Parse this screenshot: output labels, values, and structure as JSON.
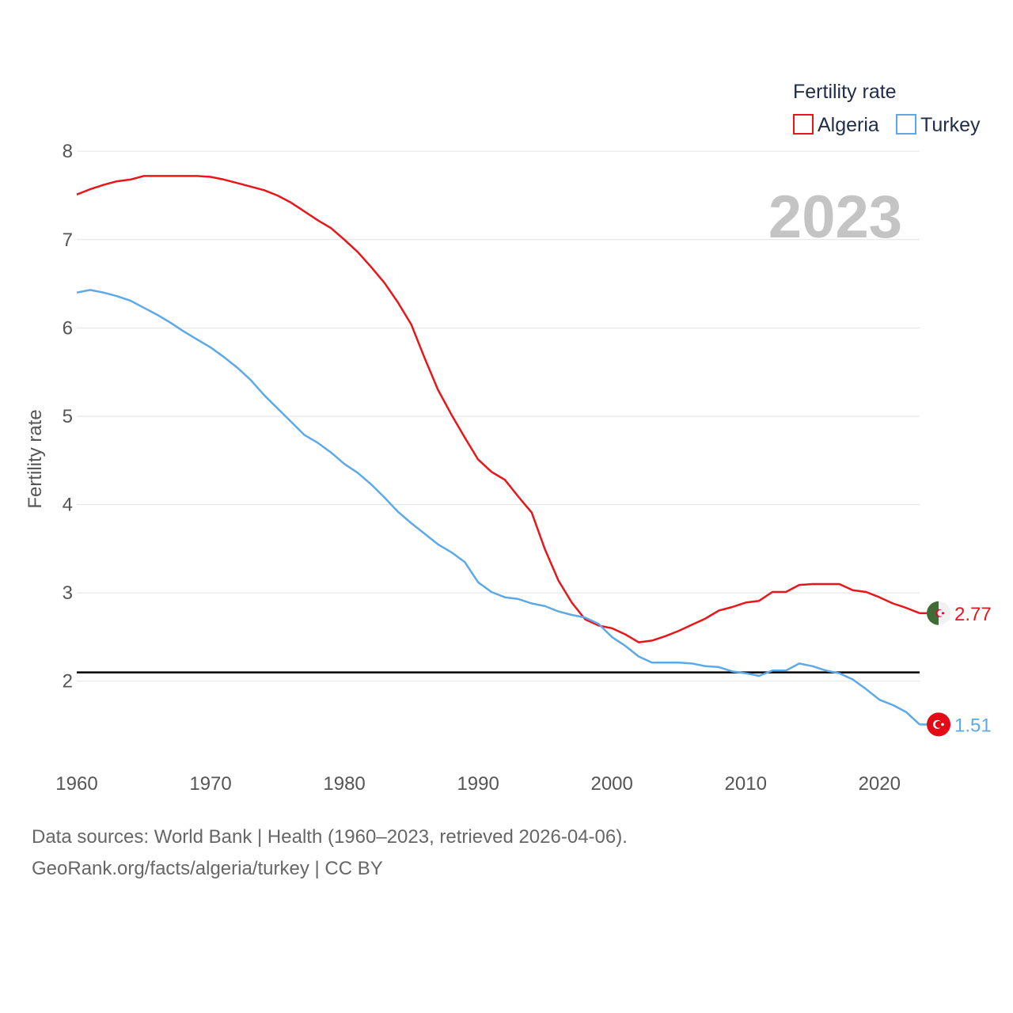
{
  "chart_data": {
    "type": "line",
    "title": "Fertility rate",
    "ylabel": "Fertility rate",
    "xlabel": "",
    "year_label": "2023",
    "xlim": [
      1960,
      2023
    ],
    "ylim": [
      1.2,
      8.1
    ],
    "x_ticks": [
      "1960",
      "1970",
      "1980",
      "1990",
      "2000",
      "2010",
      "2020"
    ],
    "y_ticks": [
      "2",
      "3",
      "4",
      "5",
      "6",
      "7",
      "8"
    ],
    "reference_line": 2.1,
    "x": [
      1960,
      1961,
      1962,
      1963,
      1964,
      1965,
      1966,
      1967,
      1968,
      1969,
      1970,
      1971,
      1972,
      1973,
      1974,
      1975,
      1976,
      1977,
      1978,
      1979,
      1980,
      1981,
      1982,
      1983,
      1984,
      1985,
      1986,
      1987,
      1988,
      1989,
      1990,
      1991,
      1992,
      1993,
      1994,
      1995,
      1996,
      1997,
      1998,
      1999,
      2000,
      2001,
      2002,
      2003,
      2004,
      2005,
      2006,
      2007,
      2008,
      2009,
      2010,
      2011,
      2012,
      2013,
      2014,
      2015,
      2016,
      2017,
      2018,
      2019,
      2020,
      2021,
      2022,
      2023
    ],
    "series": [
      {
        "name": "Algeria",
        "color": "#e8161b",
        "end_label": "2.77",
        "flag": "algeria-flag",
        "values": [
          7.51,
          7.57,
          7.62,
          7.66,
          7.68,
          7.72,
          7.72,
          7.72,
          7.72,
          7.72,
          7.71,
          7.68,
          7.64,
          7.6,
          7.56,
          7.5,
          7.42,
          7.32,
          7.22,
          7.13,
          7.0,
          6.86,
          6.69,
          6.51,
          6.29,
          6.04,
          5.66,
          5.3,
          5.02,
          4.76,
          4.51,
          4.37,
          4.28,
          4.09,
          3.91,
          3.49,
          3.14,
          2.89,
          2.7,
          2.63,
          2.6,
          2.53,
          2.44,
          2.46,
          2.51,
          2.57,
          2.64,
          2.71,
          2.8,
          2.84,
          2.89,
          2.91,
          3.01,
          3.01,
          3.09,
          3.1,
          3.1,
          3.1,
          3.03,
          3.01,
          2.95,
          2.88,
          2.83,
          2.77
        ]
      },
      {
        "name": "Turkey",
        "color": "#5da9e8",
        "end_label": "1.51",
        "flag": "turkey-flag",
        "values": [
          6.4,
          6.43,
          6.4,
          6.36,
          6.31,
          6.23,
          6.15,
          6.06,
          5.96,
          5.87,
          5.78,
          5.67,
          5.55,
          5.41,
          5.24,
          5.09,
          4.94,
          4.79,
          4.7,
          4.59,
          4.46,
          4.36,
          4.23,
          4.08,
          3.92,
          3.79,
          3.67,
          3.55,
          3.46,
          3.35,
          3.12,
          3.01,
          2.95,
          2.93,
          2.88,
          2.85,
          2.79,
          2.75,
          2.72,
          2.65,
          2.5,
          2.4,
          2.28,
          2.21,
          2.21,
          2.21,
          2.2,
          2.17,
          2.16,
          2.11,
          2.09,
          2.06,
          2.12,
          2.12,
          2.2,
          2.17,
          2.12,
          2.09,
          2.02,
          1.91,
          1.79,
          1.73,
          1.65,
          1.51
        ]
      }
    ]
  },
  "footer": {
    "line1": "Data sources: World Bank | Health (1960–2023, retrieved 2026-04-06).",
    "line2": "GeoRank.org/facts/algeria/turkey | CC BY"
  }
}
